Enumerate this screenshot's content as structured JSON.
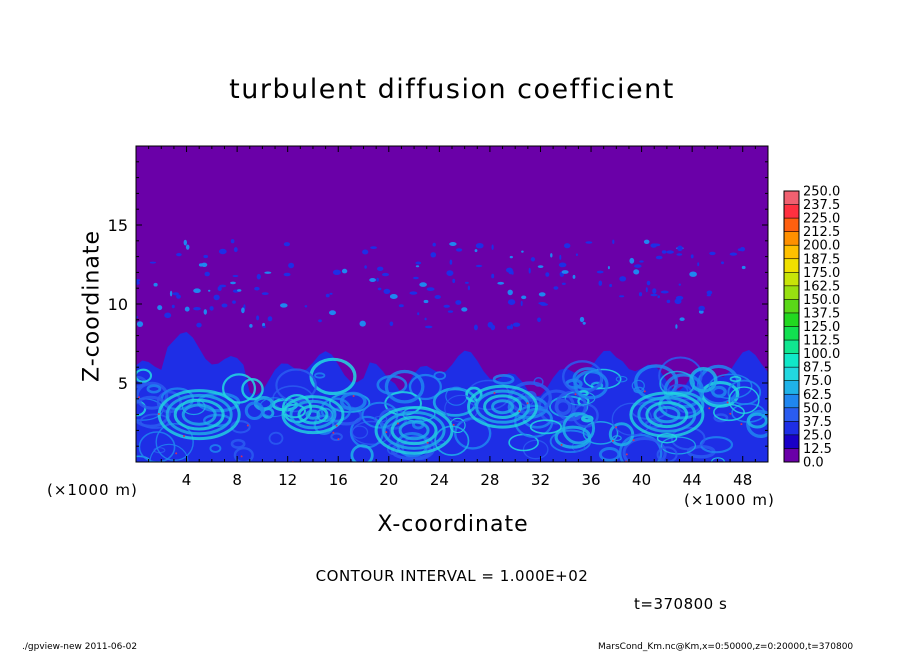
{
  "colors": {
    "background_fill": "#6a00a8",
    "low": "#0a1fd0",
    "mid": "#1fb8e8",
    "high": "#4ff0ff"
  },
  "chart_data": {
    "type": "heatmap",
    "title": "turbulent diffusion coefficient",
    "xlabel": "X-coordinate",
    "ylabel": "Z-coordinate",
    "x_unit": "(×1000 m)",
    "x_unit_right": "(×1000 m)",
    "xlim": [
      0,
      50
    ],
    "ylim": [
      0,
      20
    ],
    "x_ticks": [
      4,
      8,
      12,
      16,
      20,
      24,
      28,
      32,
      36,
      40,
      44,
      48
    ],
    "y_ticks": [
      5,
      10,
      15
    ],
    "colorbar": {
      "levels": [
        "0.0",
        "12.5",
        "25.0",
        "37.5",
        "50.0",
        "62.5",
        "75.0",
        "87.5",
        "100.0",
        "112.5",
        "125.0",
        "137.5",
        "150.0",
        "162.5",
        "175.0",
        "187.5",
        "200.0",
        "212.5",
        "225.0",
        "237.5",
        "250.0"
      ],
      "colors": [
        "#6a00a8",
        "#1a00c8",
        "#1e2ee6",
        "#2a5cf0",
        "#1f86f0",
        "#1fb2e8",
        "#22d8e0",
        "#10e8c8",
        "#10e690",
        "#12e050",
        "#22d820",
        "#5ad818",
        "#98e010",
        "#c8e408",
        "#f0e000",
        "#ffc000",
        "#ff9000",
        "#ff6010",
        "#ff3040",
        "#f06070"
      ]
    },
    "field_description": "turbulent layer below ~7 (x1000 m) with values mostly 12.5-87.5; scattered small patches between 9 and 14; 0.0 above"
  },
  "annotations": {
    "contour_interval": "CONTOUR INTERVAL = 1.000E+02",
    "time": "t=370800  s"
  },
  "footer": {
    "left": "./gpview-new   2011-06-02",
    "right": "MarsCond_Km.nc@Km,x=0:50000,z=0:20000,t=370800"
  }
}
